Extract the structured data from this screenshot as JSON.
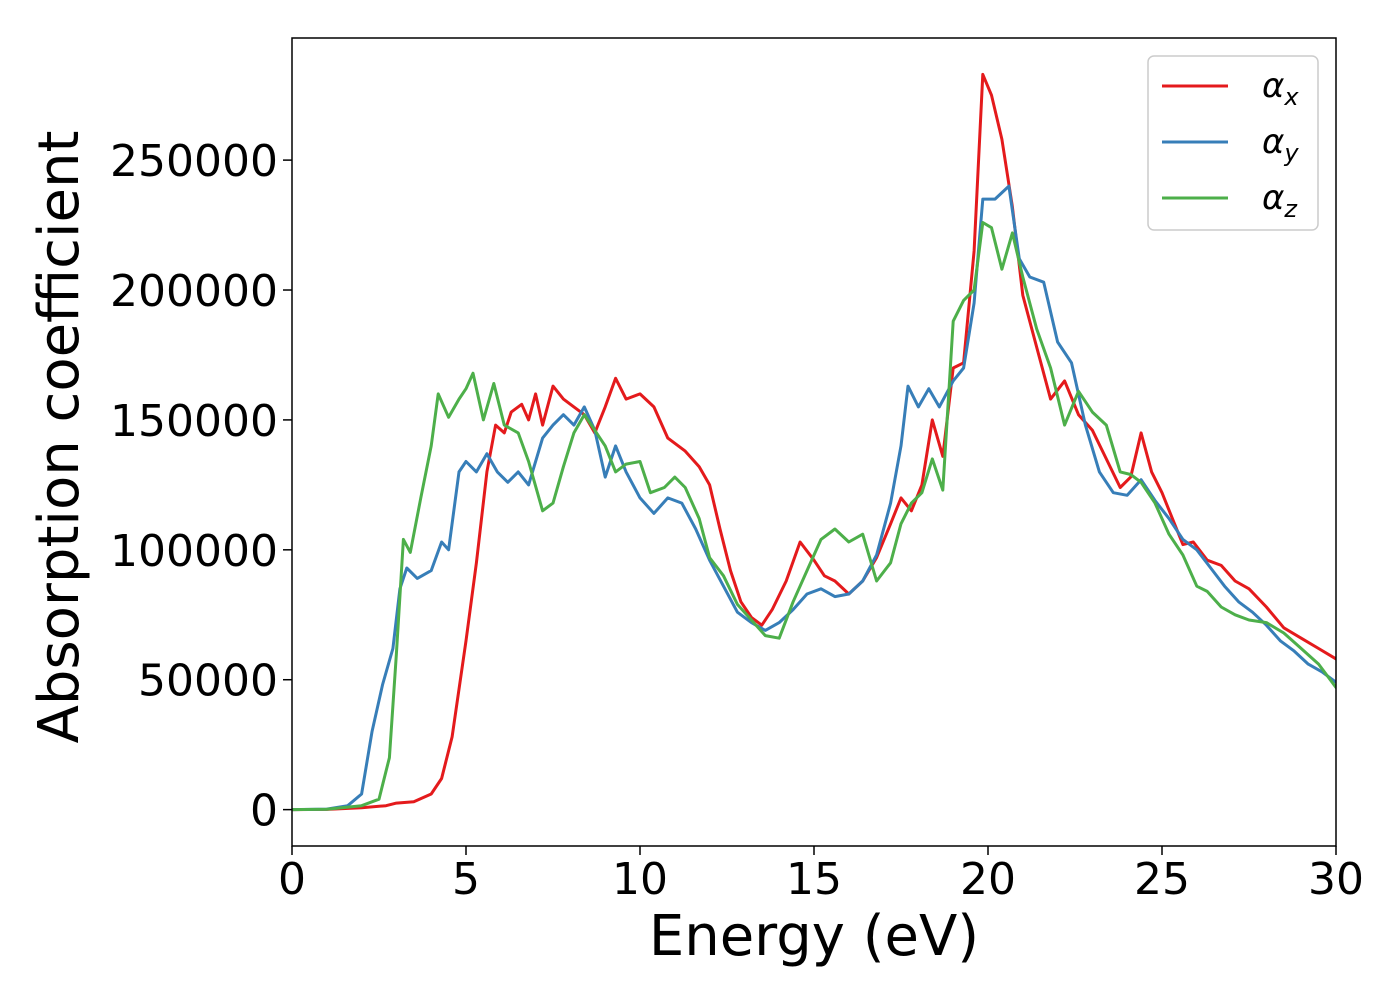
{
  "chart_data": {
    "type": "line",
    "title": "",
    "xlabel": "Energy (eV)",
    "ylabel": "Absorption coefficient",
    "xlim": [
      0,
      30
    ],
    "ylim": [
      -14000,
      297000
    ],
    "x_ticks": [
      0,
      5,
      10,
      15,
      20,
      25,
      30
    ],
    "y_ticks": [
      0,
      50000,
      100000,
      150000,
      200000,
      250000
    ],
    "grid": false,
    "legend_position": "top-right",
    "series": [
      {
        "name": "α",
        "subscript": "x",
        "color": "#e41a1c",
        "points": [
          [
            0,
            0
          ],
          [
            1,
            100
          ],
          [
            2,
            700
          ],
          [
            2.7,
            1500
          ],
          [
            3,
            2500
          ],
          [
            3.5,
            3000
          ],
          [
            4,
            6000
          ],
          [
            4.3,
            12000
          ],
          [
            4.6,
            28000
          ],
          [
            5,
            65000
          ],
          [
            5.3,
            95000
          ],
          [
            5.6,
            130000
          ],
          [
            5.85,
            148000
          ],
          [
            6.1,
            145000
          ],
          [
            6.3,
            153000
          ],
          [
            6.6,
            156000
          ],
          [
            6.8,
            150000
          ],
          [
            7,
            160000
          ],
          [
            7.2,
            148000
          ],
          [
            7.5,
            163000
          ],
          [
            7.8,
            158000
          ],
          [
            8.1,
            155000
          ],
          [
            8.4,
            152000
          ],
          [
            8.7,
            145000
          ],
          [
            9.0,
            155000
          ],
          [
            9.3,
            166000
          ],
          [
            9.6,
            158000
          ],
          [
            10,
            160000
          ],
          [
            10.4,
            155000
          ],
          [
            10.8,
            143000
          ],
          [
            11.3,
            138000
          ],
          [
            11.7,
            132000
          ],
          [
            12,
            125000
          ],
          [
            12.3,
            108000
          ],
          [
            12.6,
            92000
          ],
          [
            12.9,
            80000
          ],
          [
            13.2,
            74000
          ],
          [
            13.5,
            71000
          ],
          [
            13.8,
            77000
          ],
          [
            14.2,
            88000
          ],
          [
            14.6,
            103000
          ],
          [
            15.0,
            96000
          ],
          [
            15.3,
            90000
          ],
          [
            15.6,
            88000
          ],
          [
            16.0,
            83000
          ],
          [
            16.4,
            88000
          ],
          [
            16.8,
            97000
          ],
          [
            17.2,
            110000
          ],
          [
            17.5,
            120000
          ],
          [
            17.8,
            115000
          ],
          [
            18.1,
            125000
          ],
          [
            18.4,
            150000
          ],
          [
            18.7,
            136000
          ],
          [
            19.0,
            170000
          ],
          [
            19.3,
            172000
          ],
          [
            19.6,
            215000
          ],
          [
            19.85,
            283000
          ],
          [
            20.1,
            275000
          ],
          [
            20.4,
            258000
          ],
          [
            20.7,
            232000
          ],
          [
            21.0,
            198000
          ],
          [
            21.4,
            178000
          ],
          [
            21.8,
            158000
          ],
          [
            22.2,
            165000
          ],
          [
            22.6,
            152000
          ],
          [
            23.0,
            146000
          ],
          [
            23.4,
            135000
          ],
          [
            23.8,
            124000
          ],
          [
            24.1,
            128000
          ],
          [
            24.4,
            145000
          ],
          [
            24.7,
            130000
          ],
          [
            25.0,
            122000
          ],
          [
            25.3,
            112000
          ],
          [
            25.6,
            102000
          ],
          [
            25.9,
            103000
          ],
          [
            26.3,
            96000
          ],
          [
            26.7,
            94000
          ],
          [
            27.1,
            88000
          ],
          [
            27.5,
            85000
          ],
          [
            28.0,
            78000
          ],
          [
            28.5,
            70000
          ],
          [
            29.0,
            66000
          ],
          [
            29.5,
            62000
          ],
          [
            30,
            58000
          ]
        ]
      },
      {
        "name": "α",
        "subscript": "y",
        "color": "#377eb8",
        "points": [
          [
            0,
            0
          ],
          [
            1,
            200
          ],
          [
            1.6,
            1500
          ],
          [
            2.0,
            6000
          ],
          [
            2.3,
            30000
          ],
          [
            2.6,
            48000
          ],
          [
            2.9,
            62000
          ],
          [
            3.1,
            85000
          ],
          [
            3.3,
            93000
          ],
          [
            3.6,
            89000
          ],
          [
            4.0,
            92000
          ],
          [
            4.3,
            103000
          ],
          [
            4.5,
            100000
          ],
          [
            4.8,
            130000
          ],
          [
            5.0,
            134000
          ],
          [
            5.3,
            130000
          ],
          [
            5.6,
            137000
          ],
          [
            5.9,
            130000
          ],
          [
            6.2,
            126000
          ],
          [
            6.5,
            130000
          ],
          [
            6.8,
            125000
          ],
          [
            7.2,
            143000
          ],
          [
            7.5,
            148000
          ],
          [
            7.8,
            152000
          ],
          [
            8.1,
            148000
          ],
          [
            8.4,
            155000
          ],
          [
            8.7,
            146000
          ],
          [
            9.0,
            128000
          ],
          [
            9.3,
            140000
          ],
          [
            9.6,
            130000
          ],
          [
            10,
            120000
          ],
          [
            10.4,
            114000
          ],
          [
            10.8,
            120000
          ],
          [
            11.2,
            118000
          ],
          [
            11.6,
            108000
          ],
          [
            12,
            96000
          ],
          [
            12.4,
            86000
          ],
          [
            12.8,
            76000
          ],
          [
            13.2,
            72000
          ],
          [
            13.6,
            69000
          ],
          [
            14.0,
            72000
          ],
          [
            14.4,
            77000
          ],
          [
            14.8,
            83000
          ],
          [
            15.2,
            85000
          ],
          [
            15.6,
            82000
          ],
          [
            16.0,
            83000
          ],
          [
            16.4,
            88000
          ],
          [
            16.8,
            98000
          ],
          [
            17.2,
            118000
          ],
          [
            17.5,
            140000
          ],
          [
            17.7,
            163000
          ],
          [
            18.0,
            155000
          ],
          [
            18.3,
            162000
          ],
          [
            18.6,
            155000
          ],
          [
            19.0,
            165000
          ],
          [
            19.3,
            170000
          ],
          [
            19.6,
            195000
          ],
          [
            19.85,
            235000
          ],
          [
            20.2,
            235000
          ],
          [
            20.6,
            240000
          ],
          [
            20.9,
            212000
          ],
          [
            21.2,
            205000
          ],
          [
            21.6,
            203000
          ],
          [
            22.0,
            180000
          ],
          [
            22.4,
            172000
          ],
          [
            22.8,
            148000
          ],
          [
            23.2,
            130000
          ],
          [
            23.6,
            122000
          ],
          [
            24.0,
            121000
          ],
          [
            24.4,
            127000
          ],
          [
            24.8,
            119000
          ],
          [
            25.2,
            112000
          ],
          [
            25.6,
            104000
          ],
          [
            26.0,
            100000
          ],
          [
            26.4,
            93000
          ],
          [
            26.8,
            86000
          ],
          [
            27.2,
            80000
          ],
          [
            27.6,
            76000
          ],
          [
            28.0,
            71000
          ],
          [
            28.4,
            65000
          ],
          [
            28.8,
            61000
          ],
          [
            29.2,
            56000
          ],
          [
            29.6,
            53000
          ],
          [
            30,
            49000
          ]
        ]
      },
      {
        "name": "α",
        "subscript": "z",
        "color": "#4daf4a",
        "points": [
          [
            0,
            0
          ],
          [
            1,
            150
          ],
          [
            2,
            1500
          ],
          [
            2.5,
            4000
          ],
          [
            2.8,
            20000
          ],
          [
            3.0,
            60000
          ],
          [
            3.2,
            104000
          ],
          [
            3.4,
            99000
          ],
          [
            3.7,
            120000
          ],
          [
            4.0,
            140000
          ],
          [
            4.2,
            160000
          ],
          [
            4.5,
            151000
          ],
          [
            4.8,
            158000
          ],
          [
            5.0,
            162000
          ],
          [
            5.2,
            168000
          ],
          [
            5.5,
            150000
          ],
          [
            5.8,
            164000
          ],
          [
            6.1,
            148000
          ],
          [
            6.5,
            145000
          ],
          [
            6.8,
            134000
          ],
          [
            7.2,
            115000
          ],
          [
            7.5,
            118000
          ],
          [
            7.8,
            132000
          ],
          [
            8.1,
            145000
          ],
          [
            8.4,
            152000
          ],
          [
            8.7,
            146000
          ],
          [
            9.0,
            140000
          ],
          [
            9.3,
            130000
          ],
          [
            9.6,
            133000
          ],
          [
            10,
            134000
          ],
          [
            10.3,
            122000
          ],
          [
            10.7,
            124000
          ],
          [
            11.0,
            128000
          ],
          [
            11.3,
            124000
          ],
          [
            11.7,
            112000
          ],
          [
            12,
            97000
          ],
          [
            12.4,
            90000
          ],
          [
            12.8,
            79000
          ],
          [
            13.2,
            73000
          ],
          [
            13.6,
            67000
          ],
          [
            14.0,
            66000
          ],
          [
            14.4,
            80000
          ],
          [
            14.8,
            92000
          ],
          [
            15.2,
            104000
          ],
          [
            15.6,
            108000
          ],
          [
            16.0,
            103000
          ],
          [
            16.4,
            106000
          ],
          [
            16.8,
            88000
          ],
          [
            17.2,
            95000
          ],
          [
            17.5,
            110000
          ],
          [
            17.8,
            118000
          ],
          [
            18.1,
            122000
          ],
          [
            18.4,
            135000
          ],
          [
            18.7,
            123000
          ],
          [
            19.0,
            188000
          ],
          [
            19.3,
            196000
          ],
          [
            19.6,
            200000
          ],
          [
            19.85,
            226000
          ],
          [
            20.1,
            224000
          ],
          [
            20.4,
            208000
          ],
          [
            20.7,
            222000
          ],
          [
            21.0,
            205000
          ],
          [
            21.4,
            185000
          ],
          [
            21.8,
            170000
          ],
          [
            22.2,
            148000
          ],
          [
            22.6,
            161000
          ],
          [
            23.0,
            153000
          ],
          [
            23.4,
            148000
          ],
          [
            23.8,
            130000
          ],
          [
            24.1,
            129000
          ],
          [
            24.4,
            126000
          ],
          [
            24.8,
            118000
          ],
          [
            25.2,
            106000
          ],
          [
            25.6,
            98000
          ],
          [
            26.0,
            86000
          ],
          [
            26.3,
            84000
          ],
          [
            26.7,
            78000
          ],
          [
            27.1,
            75000
          ],
          [
            27.5,
            73000
          ],
          [
            28.0,
            72000
          ],
          [
            28.5,
            68000
          ],
          [
            29.0,
            62000
          ],
          [
            29.5,
            56000
          ],
          [
            30,
            47000
          ]
        ]
      }
    ]
  }
}
